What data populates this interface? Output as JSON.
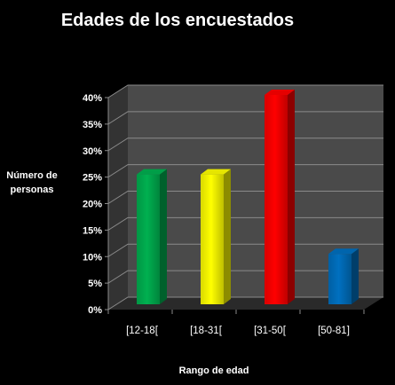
{
  "chart_data": {
    "type": "bar",
    "title": "Edades de los encuestados",
    "xlabel": "Rango de edad",
    "ylabel": "Número de personas",
    "categories": [
      "[12-18[",
      "[18-31[",
      "[31-50[",
      "[50-81]"
    ],
    "values": [
      25,
      25,
      40,
      10
    ],
    "value_format": "percent",
    "ylim": [
      0,
      40
    ],
    "yticks": [
      0,
      5,
      10,
      15,
      20,
      25,
      30,
      35,
      40
    ],
    "ytick_labels": [
      "0%",
      "5%",
      "10%",
      "15%",
      "20%",
      "25%",
      "30%",
      "35%",
      "40%"
    ],
    "grid": true,
    "legend": "none",
    "bar_colors": [
      "#00b050",
      "#ffff00",
      "#ff0000",
      "#0070c0"
    ],
    "background_color": "#000000",
    "plot_wall_color": "#4a4a4a",
    "floor_color": "#2a2a2a",
    "text_color": "#ffffff",
    "gridline_color": "#8a8a8a"
  }
}
